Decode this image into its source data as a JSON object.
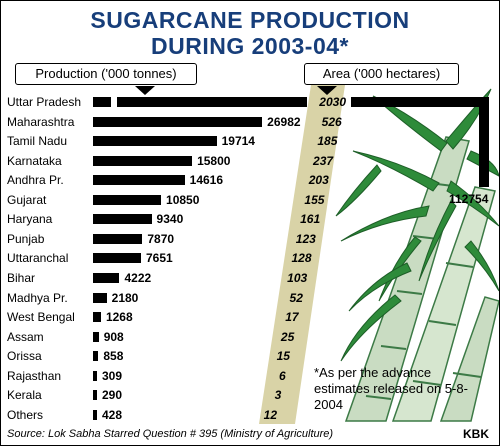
{
  "title": {
    "line1": "SUGARCANE PRODUCTION",
    "line2": "DURING 2003-04*"
  },
  "headers": {
    "production": "Production ('000 tonnes)",
    "area": "Area ('000 hectares)"
  },
  "note": "*As per the advance estimates released on 5-8-2004",
  "source": "Source: Lok Sabha Starred Question # 395 (Ministry of Agriculture)",
  "credit": "KBK",
  "colors": {
    "title": "#173e7a",
    "bars": "#000000",
    "area_band": "#d9d3a7",
    "cane_green": "#2e8b3a",
    "cane_stalk": "#c9dcc2"
  },
  "chart_data": {
    "type": "bar",
    "orientation": "horizontal",
    "categories": [
      "Uttar Pradesh",
      "Maharashtra",
      "Tamil Nadu",
      "Karnataka",
      "Andhra Pr.",
      "Gujarat",
      "Haryana",
      "Punjab",
      "Uttaranchal",
      "Bihar",
      "Madhya Pr.",
      "West Bengal",
      "Assam",
      "Orissa",
      "Rajasthan",
      "Kerala",
      "Others"
    ],
    "series": [
      {
        "name": "Production ('000 tonnes)",
        "values": [
          112754,
          26982,
          19714,
          15800,
          14616,
          10850,
          9340,
          7870,
          7651,
          4222,
          2180,
          1268,
          908,
          858,
          309,
          290,
          428
        ]
      },
      {
        "name": "Area ('000 hectares)",
        "values": [
          2030,
          526,
          185,
          237,
          203,
          155,
          161,
          123,
          128,
          103,
          52,
          17,
          25,
          15,
          6,
          3,
          12
        ]
      }
    ],
    "value_labels": {
      "production": [
        "112754",
        "26982",
        "19714",
        "15800",
        "14616",
        "10850",
        "9340",
        "7870",
        "7651",
        "4222",
        "2180",
        "1268",
        "908",
        "858",
        "309",
        "290",
        "428"
      ],
      "area": [
        "2030",
        "526",
        "185",
        "237",
        "203",
        "155",
        "161",
        "123",
        "128",
        "103",
        "52",
        "17",
        "25",
        "15",
        "6",
        "3",
        "12"
      ]
    },
    "title": "SUGARCANE PRODUCTION DURING 2003-04*",
    "grid": false
  }
}
